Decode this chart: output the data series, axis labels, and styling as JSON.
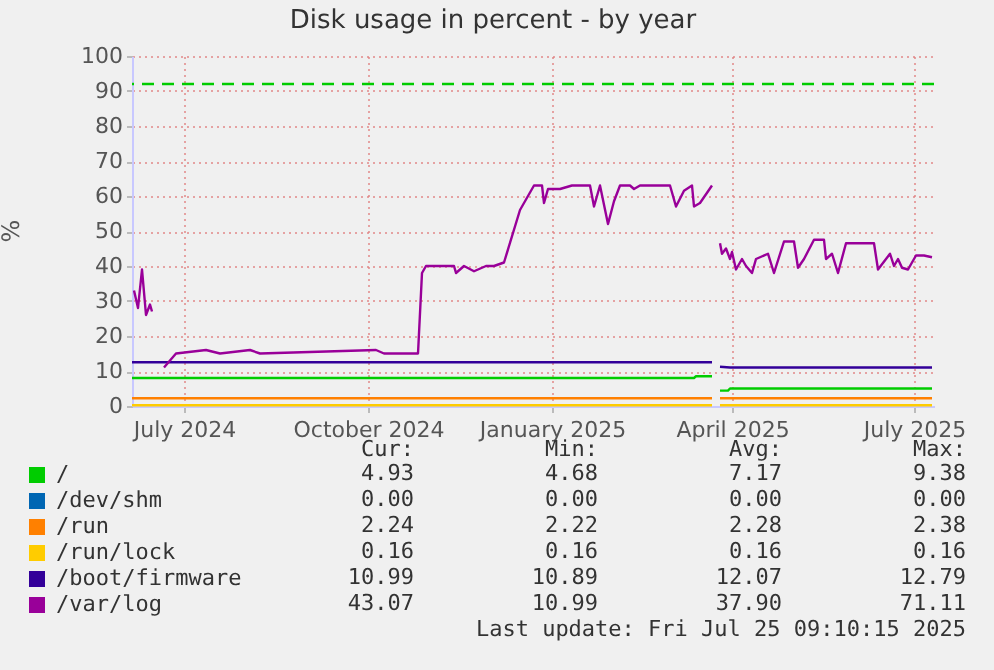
{
  "chart_data": {
    "type": "line",
    "title": "Disk usage in percent - by year",
    "ylabel": "%",
    "xlim": [
      "2024-06-05",
      "2025-07-11"
    ],
    "ylim": [
      0,
      100
    ],
    "yticks": [
      0,
      10,
      20,
      30,
      40,
      50,
      60,
      70,
      80,
      90,
      100
    ],
    "xticks": [
      {
        "value": "2024-07-01",
        "label": "July 2024"
      },
      {
        "value": "2024-10-01",
        "label": "October 2024"
      },
      {
        "value": "2025-01-01",
        "label": "January 2025"
      },
      {
        "value": "2025-04-01",
        "label": "April 2025"
      },
      {
        "value": "2025-07-01",
        "label": "July 2025"
      }
    ],
    "grid": true,
    "legend": "bottom",
    "ref_lines": [
      {
        "axis": "y",
        "value": 92,
        "color": "#00cc00",
        "line_style": "dashed"
      }
    ],
    "series": [
      {
        "name": "/",
        "color": "#00cc00",
        "x": [
          "2024-06-05",
          "2025-03-13",
          "2025-03-14",
          "2025-03-22",
          "2025-03-24",
          "2025-03-26",
          "2025-03-30",
          "2025-03-31",
          "2025-07-10"
        ],
        "values": [
          8,
          8,
          8.5,
          8.5,
          null,
          4.4,
          4.4,
          5,
          5
        ]
      },
      {
        "name": "/dev/shm",
        "color": "#0066b3"
      },
      {
        "name": "/run",
        "color": "#ff8000",
        "x": [
          "2024-06-05",
          "2025-03-22",
          "2025-03-24",
          "2025-03-26",
          "2025-07-10"
        ],
        "values": [
          2.2,
          2.2,
          null,
          2.2,
          2.2
        ]
      },
      {
        "name": "/run/lock",
        "color": "#ffcc00",
        "x": [
          "2024-06-05",
          "2025-03-22",
          "2025-03-24",
          "2025-03-26",
          "2025-07-10"
        ],
        "values": [
          0.2,
          0.2,
          null,
          0.2,
          0.2
        ]
      },
      {
        "name": "/boot/firmware",
        "color": "#330099",
        "x": [
          "2024-06-05",
          "2025-03-22",
          "2025-03-24",
          "2025-03-26",
          "2025-03-31",
          "2025-07-10"
        ],
        "values": [
          12.5,
          12.5,
          null,
          11.2,
          11,
          11
        ]
      },
      {
        "name": "/var/log",
        "color": "#990099",
        "x": [
          "2024-06-06",
          "2024-06-08",
          "2024-06-10",
          "2024-06-12",
          "2024-06-14",
          "2024-06-15",
          "2024-06-18",
          "2024-06-21",
          "2024-06-27",
          "2024-07-12",
          "2024-07-19",
          "2024-08-03",
          "2024-08-08",
          "2024-10-05",
          "2024-10-09",
          "2024-10-26",
          "2024-10-28",
          "2024-10-30",
          "2024-11-13",
          "2024-11-14",
          "2024-11-18",
          "2024-11-23",
          "2024-11-29",
          "2024-12-03",
          "2024-12-08",
          "2024-12-16",
          "2024-12-23",
          "2024-12-27",
          "2024-12-28",
          "2024-12-30",
          "2025-01-05",
          "2025-01-11",
          "2025-01-20",
          "2025-01-22",
          "2025-01-25",
          "2025-01-29",
          "2025-02-01",
          "2025-02-04",
          "2025-02-09",
          "2025-02-11",
          "2025-02-14",
          "2025-03-01",
          "2025-03-04",
          "2025-03-08",
          "2025-03-12",
          "2025-03-13",
          "2025-03-16",
          "2025-03-22",
          "2025-03-24",
          "2025-03-26",
          "2025-03-27",
          "2025-03-29",
          "2025-03-31",
          "2025-04-01",
          "2025-04-03",
          "2025-04-06",
          "2025-04-08",
          "2025-04-11",
          "2025-04-13",
          "2025-04-19",
          "2025-04-22",
          "2025-04-27",
          "2025-05-02",
          "2025-05-04",
          "2025-05-07",
          "2025-05-12",
          "2025-05-17",
          "2025-05-18",
          "2025-05-21",
          "2025-05-24",
          "2025-05-28",
          "2025-06-11",
          "2025-06-13",
          "2025-06-19",
          "2025-06-21",
          "2025-06-23",
          "2025-06-25",
          "2025-06-28",
          "2025-07-02",
          "2025-07-06",
          "2025-07-10"
        ],
        "values": [
          33,
          28,
          39,
          26,
          29,
          27,
          null,
          11,
          15,
          16,
          15,
          16,
          15,
          16,
          15,
          15,
          38,
          40,
          40,
          38,
          40,
          38.5,
          40,
          40,
          41,
          56,
          63,
          63,
          58,
          62,
          62,
          63,
          63,
          57,
          63,
          52,
          58.5,
          63,
          63,
          62,
          63,
          63,
          57,
          61.5,
          63,
          57,
          58,
          63,
          null,
          46.5,
          43.5,
          45,
          42,
          44,
          39,
          42,
          40,
          38,
          42,
          43.5,
          38,
          47,
          47,
          39.5,
          42,
          47.5,
          47.5,
          42,
          43.5,
          38,
          46.5,
          46.5,
          39,
          43.5,
          40,
          42,
          39.5,
          39,
          43,
          43,
          42.5
        ]
      }
    ],
    "annotations": [
      "Cur:",
      "Min:",
      "Avg:",
      "Max:",
      "4.93",
      "4.68",
      "7.17",
      "9.38",
      "0.00",
      "0.00",
      "0.00",
      "0.00",
      "2.24",
      "2.22",
      "2.28",
      "2.38",
      "0.16",
      "0.16",
      "0.16",
      "0.16",
      "10.99",
      "10.89",
      "12.07",
      "12.79",
      "43.07",
      "10.99",
      "37.90",
      "71.11",
      "Last update: Fri Jul 25 09:10:15 2025"
    ]
  }
}
